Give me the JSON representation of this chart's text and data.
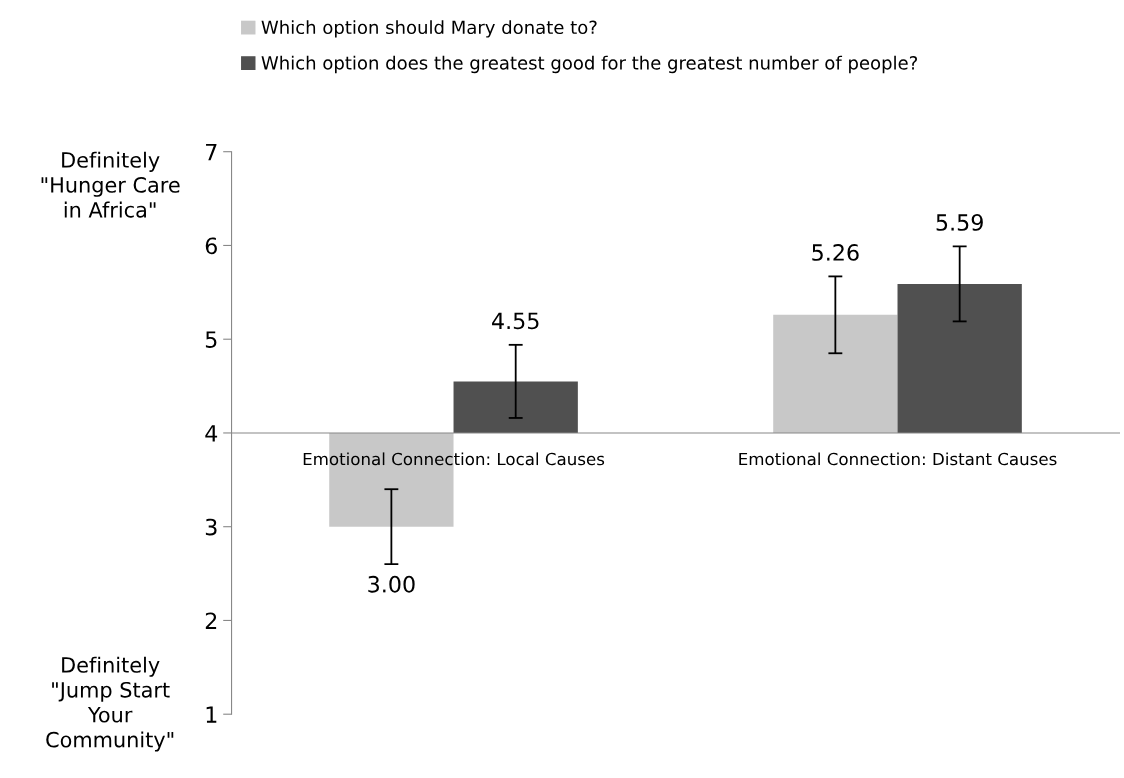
{
  "chart_data": {
    "type": "bar",
    "categories": [
      "Emotional Connection: Local Causes",
      "Emotional Connection: Distant Causes"
    ],
    "series": [
      {
        "name": "Which option should Mary donate to?",
        "color": "#c8c8c8",
        "base": [
          4,
          4
        ],
        "values": [
          -1.0,
          1.26
        ],
        "errors": [
          0.4,
          0.41
        ],
        "value_labels": [
          "3.00",
          "5.26"
        ]
      },
      {
        "name": "Which option does the greatest good for the greatest number of people?",
        "color": "#505050",
        "base": [
          4,
          4
        ],
        "values": [
          0.55,
          1.59
        ],
        "errors": [
          0.39,
          0.4
        ],
        "value_labels": [
          "4.55",
          "5.59"
        ]
      }
    ],
    "ylim": [
      1,
      7
    ],
    "yticks": [
      1,
      2,
      3,
      4,
      5,
      6,
      7
    ],
    "annotations": [
      "Definitely\n\"Hunger Care\nin Africa\"",
      "Definitely\n\"Jump Start\nYour\nCommunity\""
    ],
    "legend": "top",
    "grid": false
  }
}
